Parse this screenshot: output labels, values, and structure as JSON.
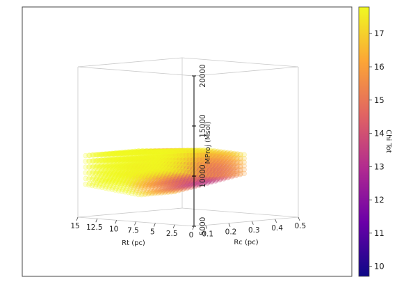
{
  "chart_data": {
    "type": "scatter",
    "projection": "3d",
    "title": "",
    "axes": {
      "x": {
        "label": "Rt (pc)",
        "ticks": [
          "15",
          "12.5",
          "10",
          "7.5",
          "5",
          "2.5",
          "0"
        ],
        "range": [
          0,
          15
        ]
      },
      "y": {
        "label": "Rc (pc)",
        "ticks": [
          "0.1",
          "0.2",
          "0.3",
          "0.4",
          "0.5"
        ],
        "range": [
          0.05,
          0.5
        ]
      },
      "z": {
        "label": "MProj (Msol)",
        "ticks": [
          "5000",
          "10000",
          "15000",
          "20000"
        ],
        "range": [
          5000,
          20000
        ]
      }
    },
    "colorbar": {
      "label": "Chi Tot",
      "ticks": [
        "10",
        "11",
        "12",
        "13",
        "14",
        "15",
        "16",
        "17"
      ],
      "range": [
        9.7,
        17.8
      ],
      "colormap": "plasma",
      "stops": [
        "#0d0887",
        "#6a00a8",
        "#b12a90",
        "#e16462",
        "#fca636",
        "#f0f921"
      ]
    },
    "points": {
      "description_of_domain": "dense grid of points, Rt 2.5-14, Rc 0.05-0.35, MProj ~8000-12500",
      "rt_range": [
        2.5,
        14
      ],
      "rc_range": [
        0.05,
        0.35
      ],
      "mproj_range": [
        8000,
        12500
      ],
      "chi_range": [
        11.5,
        17.8
      ]
    },
    "grid": false,
    "legend": "colorbar-right"
  }
}
